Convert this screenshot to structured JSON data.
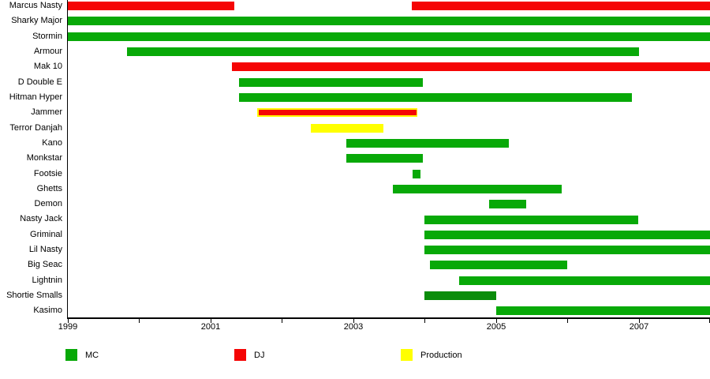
{
  "chart_data": {
    "type": "bar",
    "variant": "horizontal-timeline-gantt",
    "title": "",
    "x_axis": {
      "min": 1999,
      "max": 2008,
      "tick_step": 1,
      "labeled_ticks": [
        1999,
        2001,
        2003,
        2005,
        2007
      ]
    },
    "roles": {
      "MC": "#08A908",
      "DJ": "#F50505",
      "Production": "#FFFF00"
    },
    "rows": [
      {
        "name": "Marcus Nasty",
        "segments": [
          {
            "role": "DJ",
            "start": 1999.0,
            "end": 2001.33
          },
          {
            "role": "DJ",
            "start": 2003.82,
            "end": 2008.0
          }
        ]
      },
      {
        "name": "Sharky Major",
        "segments": [
          {
            "role": "MC",
            "start": 1999.0,
            "end": 2008.0
          }
        ]
      },
      {
        "name": "Stormin",
        "segments": [
          {
            "role": "MC",
            "start": 1999.0,
            "end": 2008.0
          }
        ]
      },
      {
        "name": "Armour",
        "segments": [
          {
            "role": "MC",
            "start": 1999.83,
            "end": 2007.0
          }
        ]
      },
      {
        "name": "Mak 10",
        "segments": [
          {
            "role": "DJ",
            "start": 2001.3,
            "end": 2008.0
          }
        ]
      },
      {
        "name": "D Double E",
        "segments": [
          {
            "role": "MC",
            "start": 2001.4,
            "end": 2003.98
          }
        ]
      },
      {
        "name": "Hitman Hyper",
        "segments": [
          {
            "role": "MC",
            "start": 2001.4,
            "end": 2006.91
          }
        ]
      },
      {
        "name": "Jammer",
        "segments": [
          {
            "role": "Production",
            "start": 2001.65,
            "end": 2003.9
          },
          {
            "role": "DJ",
            "start": 2001.65,
            "end": 2003.9,
            "overlay": true
          }
        ]
      },
      {
        "name": "Terror Danjah",
        "segments": [
          {
            "role": "Production",
            "start": 2002.4,
            "end": 2003.42
          }
        ]
      },
      {
        "name": "Kano",
        "segments": [
          {
            "role": "MC",
            "start": 2002.9,
            "end": 2005.18
          }
        ]
      },
      {
        "name": "Monkstar",
        "segments": [
          {
            "role": "MC",
            "start": 2002.9,
            "end": 2003.98
          }
        ]
      },
      {
        "name": "Footsie",
        "segments": [
          {
            "role": "MC",
            "start": 2003.83,
            "end": 2003.94
          }
        ]
      },
      {
        "name": "Ghetts",
        "segments": [
          {
            "role": "MC",
            "start": 2003.56,
            "end": 2005.92
          }
        ]
      },
      {
        "name": "Demon",
        "segments": [
          {
            "role": "MC",
            "start": 2004.9,
            "end": 2005.42
          }
        ]
      },
      {
        "name": "Nasty Jack",
        "segments": [
          {
            "role": "MC",
            "start": 2004.0,
            "end": 2007.0
          }
        ]
      },
      {
        "name": "Griminal",
        "segments": [
          {
            "role": "MC",
            "start": 2004.0,
            "end": 2008.0
          }
        ]
      },
      {
        "name": "Lil Nasty",
        "segments": [
          {
            "role": "MC",
            "start": 2004.0,
            "end": 2008.0
          }
        ]
      },
      {
        "name": "Big Seac",
        "segments": [
          {
            "role": "MC",
            "start": 2004.07,
            "end": 2006.0
          }
        ]
      },
      {
        "name": "Lightnin",
        "segments": [
          {
            "role": "MC",
            "start": 2004.48,
            "end": 2008.0
          }
        ]
      },
      {
        "name": "Shortie Smalls",
        "segments": [
          {
            "role": "MC",
            "start": 2004.0,
            "end": 2005.0,
            "color": "#0A8C0A"
          }
        ]
      },
      {
        "name": "Kasimo",
        "segments": [
          {
            "role": "MC",
            "start": 2005.0,
            "end": 2008.0
          }
        ]
      }
    ],
    "legend": [
      {
        "label": "MC",
        "color": "#08A908"
      },
      {
        "label": "DJ",
        "color": "#F50505"
      },
      {
        "label": "Production",
        "color": "#FFFF00"
      }
    ]
  }
}
